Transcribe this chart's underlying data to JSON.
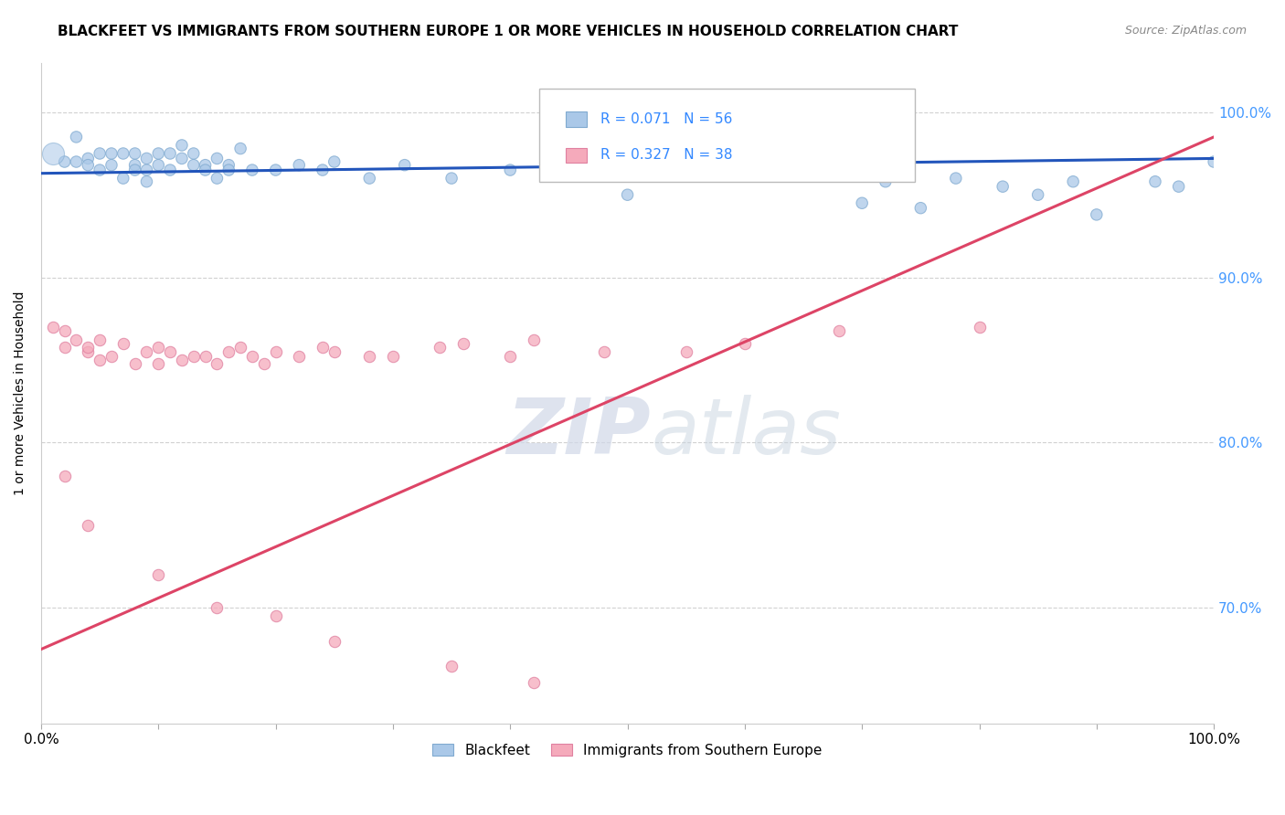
{
  "title": "BLACKFEET VS IMMIGRANTS FROM SOUTHERN EUROPE 1 OR MORE VEHICLES IN HOUSEHOLD CORRELATION CHART",
  "source": "Source: ZipAtlas.com",
  "ylabel": "1 or more Vehicles in Household",
  "xlim": [
    0.0,
    1.0
  ],
  "ylim": [
    0.63,
    1.03
  ],
  "yticks": [
    0.7,
    0.8,
    0.9,
    1.0
  ],
  "ytick_labels": [
    "70.0%",
    "80.0%",
    "90.0%",
    "100.0%"
  ],
  "xticks": [
    0.0,
    0.1,
    0.2,
    0.3,
    0.4,
    0.5,
    0.6,
    0.7,
    0.8,
    0.9,
    1.0
  ],
  "xtick_labels": [
    "0.0%",
    "",
    "",
    "",
    "",
    "",
    "",
    "",
    "",
    "",
    "100.0%"
  ],
  "blue_R": 0.071,
  "blue_N": 56,
  "pink_R": 0.327,
  "pink_N": 38,
  "blue_color": "#aac8e8",
  "pink_color": "#f5aabb",
  "blue_edge_color": "#80aad0",
  "pink_edge_color": "#e080a0",
  "blue_line_color": "#2255bb",
  "pink_line_color": "#dd4466",
  "blue_line_start_y": 0.963,
  "blue_line_end_y": 0.972,
  "pink_line_start_y": 0.675,
  "pink_line_end_y": 0.985,
  "blue_points_x": [
    0.01,
    0.02,
    0.03,
    0.03,
    0.04,
    0.04,
    0.05,
    0.05,
    0.06,
    0.06,
    0.07,
    0.08,
    0.08,
    0.09,
    0.09,
    0.1,
    0.1,
    0.11,
    0.11,
    0.12,
    0.12,
    0.13,
    0.13,
    0.14,
    0.15,
    0.16,
    0.17,
    0.18,
    0.2,
    0.22,
    0.25,
    0.28,
    0.31,
    0.35,
    0.4,
    0.47,
    0.5,
    0.55,
    0.7,
    0.72,
    0.75,
    0.78,
    0.82,
    0.85,
    0.88,
    0.9,
    0.95,
    0.97,
    1.0,
    0.07,
    0.08,
    0.09,
    0.14,
    0.15,
    0.16,
    0.24
  ],
  "blue_points_y": [
    0.975,
    0.97,
    0.985,
    0.97,
    0.972,
    0.968,
    0.975,
    0.965,
    0.975,
    0.968,
    0.975,
    0.975,
    0.968,
    0.972,
    0.965,
    0.968,
    0.975,
    0.975,
    0.965,
    0.972,
    0.98,
    0.968,
    0.975,
    0.968,
    0.972,
    0.968,
    0.978,
    0.965,
    0.965,
    0.968,
    0.97,
    0.96,
    0.968,
    0.96,
    0.965,
    0.968,
    0.95,
    0.968,
    0.945,
    0.958,
    0.942,
    0.96,
    0.955,
    0.95,
    0.958,
    0.938,
    0.958,
    0.955,
    0.97,
    0.96,
    0.965,
    0.958,
    0.965,
    0.96,
    0.965,
    0.965
  ],
  "blue_points_size": [
    300,
    80,
    80,
    80,
    80,
    80,
    80,
    80,
    80,
    80,
    80,
    80,
    80,
    80,
    80,
    80,
    80,
    80,
    80,
    80,
    80,
    80,
    80,
    80,
    80,
    80,
    80,
    80,
    80,
    80,
    80,
    80,
    80,
    80,
    80,
    80,
    80,
    80,
    80,
    80,
    80,
    80,
    80,
    80,
    80,
    80,
    80,
    80,
    80,
    80,
    80,
    80,
    80,
    80,
    80,
    80
  ],
  "pink_points_x": [
    0.01,
    0.02,
    0.02,
    0.03,
    0.04,
    0.04,
    0.05,
    0.05,
    0.06,
    0.07,
    0.08,
    0.09,
    0.1,
    0.1,
    0.11,
    0.12,
    0.13,
    0.14,
    0.15,
    0.16,
    0.17,
    0.18,
    0.19,
    0.2,
    0.22,
    0.24,
    0.25,
    0.28,
    0.3,
    0.34,
    0.36,
    0.4,
    0.42,
    0.48,
    0.55,
    0.6,
    0.68,
    0.8
  ],
  "pink_points_y": [
    0.87,
    0.858,
    0.868,
    0.862,
    0.855,
    0.858,
    0.85,
    0.862,
    0.852,
    0.86,
    0.848,
    0.855,
    0.848,
    0.858,
    0.855,
    0.85,
    0.852,
    0.852,
    0.848,
    0.855,
    0.858,
    0.852,
    0.848,
    0.855,
    0.852,
    0.858,
    0.855,
    0.852,
    0.852,
    0.858,
    0.86,
    0.852,
    0.862,
    0.855,
    0.855,
    0.86,
    0.868,
    0.87
  ],
  "pink_outlier_x": [
    0.02,
    0.04,
    0.1,
    0.15,
    0.2,
    0.25,
    0.35,
    0.42
  ],
  "pink_outlier_y": [
    0.78,
    0.75,
    0.72,
    0.7,
    0.695,
    0.68,
    0.665,
    0.655
  ]
}
